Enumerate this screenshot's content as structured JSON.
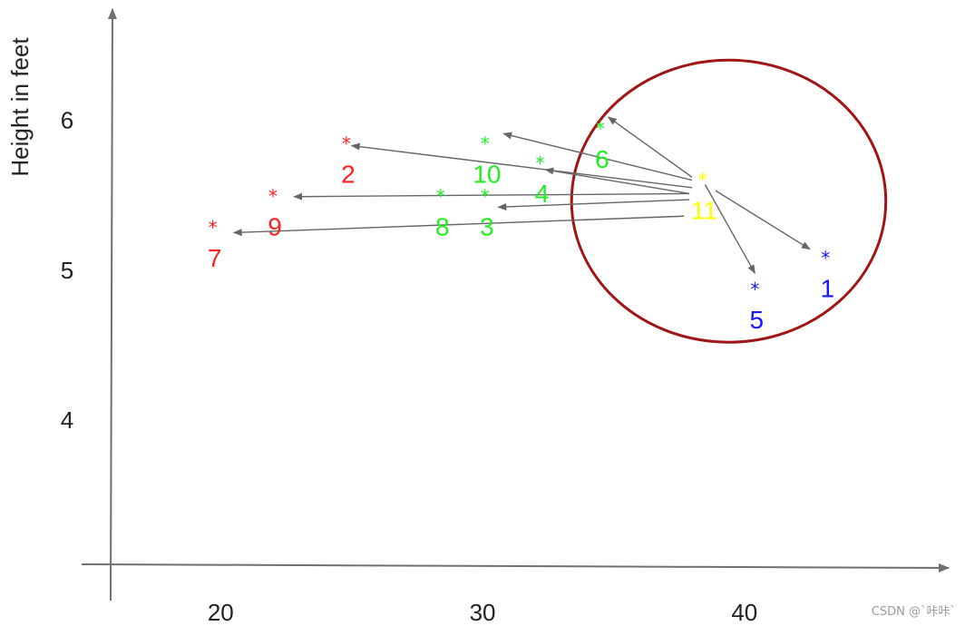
{
  "chart_data": {
    "type": "scatter",
    "title": "",
    "xlabel": "",
    "ylabel": "Height in feet",
    "xlim": [
      15.8,
      47.8
    ],
    "ylim": [
      3.04,
      6.74
    ],
    "x_ticks": [
      20,
      30,
      40
    ],
    "y_ticks": [
      4,
      5,
      6
    ],
    "grid": false,
    "colors": {
      "red": "#ff2020",
      "green": "#22ee22",
      "blue": "#1515ff",
      "yellow": "#ffff00",
      "arrow": "#666666",
      "circle": "#a01515",
      "axis": "#707070"
    },
    "points": [
      {
        "label": "1",
        "x": 43.1,
        "y": 5.1,
        "color": "blue"
      },
      {
        "label": "2",
        "x": 24.8,
        "y": 5.86,
        "color": "red"
      },
      {
        "label": "3",
        "x": 30.1,
        "y": 5.51,
        "color": "green"
      },
      {
        "label": "4",
        "x": 32.2,
        "y": 5.73,
        "color": "green"
      },
      {
        "label": "5",
        "x": 40.4,
        "y": 4.89,
        "color": "blue"
      },
      {
        "label": "6",
        "x": 34.5,
        "y": 5.96,
        "color": "green"
      },
      {
        "label": "7",
        "x": 19.7,
        "y": 5.3,
        "color": "red"
      },
      {
        "label": "8",
        "x": 28.4,
        "y": 5.51,
        "color": "green"
      },
      {
        "label": "9",
        "x": 22.0,
        "y": 5.51,
        "color": "red"
      },
      {
        "label": "10",
        "x": 30.1,
        "y": 5.86,
        "color": "green"
      },
      {
        "label": "11",
        "x": 38.4,
        "y": 5.62,
        "color": "yellow"
      }
    ],
    "arrows": [
      {
        "from": [
          38.0,
          5.62
        ],
        "to": [
          34.8,
          6.02
        ]
      },
      {
        "from": [
          38.0,
          5.6
        ],
        "to": [
          30.8,
          5.91
        ]
      },
      {
        "from": [
          38.0,
          5.55
        ],
        "to": [
          25.0,
          5.83
        ]
      },
      {
        "from": [
          37.9,
          5.51
        ],
        "to": [
          32.4,
          5.67
        ]
      },
      {
        "from": [
          37.9,
          5.51
        ],
        "to": [
          22.8,
          5.49
        ]
      },
      {
        "from": [
          37.9,
          5.47
        ],
        "to": [
          30.6,
          5.42
        ]
      },
      {
        "from": [
          37.7,
          5.36
        ],
        "to": [
          20.5,
          5.25
        ]
      },
      {
        "from": [
          38.5,
          5.57
        ],
        "to": [
          40.4,
          4.98
        ]
      },
      {
        "from": [
          38.9,
          5.53
        ],
        "to": [
          42.5,
          5.14
        ]
      }
    ],
    "highlight_circle": {
      "cx": 39.4,
      "cy": 5.46,
      "rx": 6.0,
      "ry": 0.94,
      "color": "circle"
    },
    "watermark": "CSDN @`咔咔`"
  }
}
